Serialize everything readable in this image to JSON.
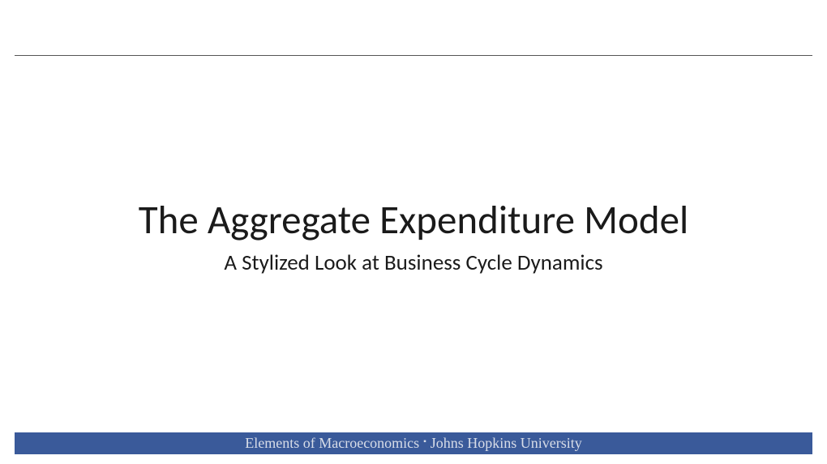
{
  "slide": {
    "title": "The Aggregate Expenditure Model",
    "subtitle": "A Stylized Look at Business Cycle Dynamics"
  },
  "footer": {
    "course": "Elements of Macroeconomics",
    "separator": "▪",
    "institution": "Johns Hopkins University",
    "background_color": "#3a5a9a",
    "text_color": "#d8dde8"
  },
  "styles": {
    "background_color": "#ffffff",
    "rule_color": "#555555",
    "title_color": "#1a1a1a",
    "title_fontsize": 49,
    "subtitle_color": "#1a1a1a",
    "subtitle_fontsize": 27,
    "footer_fontsize": 18
  }
}
